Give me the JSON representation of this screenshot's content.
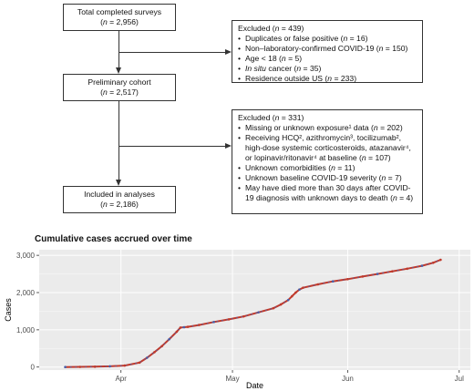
{
  "flow": {
    "total": {
      "label": "Total completed surveys",
      "n": "(n = 2,956)"
    },
    "preliminary": {
      "label": "Preliminary cohort",
      "n": "(n = 2,517)"
    },
    "included": {
      "label": "Included in analyses",
      "n": "(n = 2,186)"
    },
    "excluded1": {
      "header": "Excluded (n = 439)",
      "items": [
        "Duplicates or false positive (n = 16)",
        "Non–laboratory-confirmed COVID-19 (n = 150)",
        "Age < 18 (n = 5)",
        "In situ cancer (n = 35)",
        "Residence outside US (n = 233)"
      ]
    },
    "excluded2": {
      "header": "Excluded (n = 331)",
      "items": [
        "Missing or unknown exposure¹ data (n = 202)",
        "Receiving HCQ², azithromycin³, tocilizumab², high-dose systemic corticosteroids, atazanavir⁴, or lopinavir/ritonavir⁴ at baseline (n = 107)",
        "Unknown comorbidities (n = 11)",
        "Unknown baseline COVID-19 severity (n = 7)",
        "May have died more than 30 days after COVID-19 diagnosis with unknown days to death (n = 4)"
      ]
    }
  },
  "chart_title": "Cumulative cases accrued over time",
  "chart_data": {
    "type": "line",
    "title": "Cumulative cases accrued over time",
    "xlabel": "Date",
    "ylabel": "Cases",
    "x_tick_labels": [
      "Apr",
      "May",
      "Jun",
      "Jul"
    ],
    "y_tick_labels": [
      "0",
      "1,000",
      "2,000",
      "3,000"
    ],
    "y_ticks": [
      0,
      1000,
      2000,
      3000
    ],
    "ylim": [
      -80,
      3150
    ],
    "xlim": [
      "2020-03-10",
      "2020-07-04"
    ],
    "x_ticks": [
      "2020-04-01",
      "2020-05-01",
      "2020-06-01",
      "2020-07-01"
    ],
    "grid": true,
    "series": [
      {
        "colors": [
          "#c0392b",
          "#4a5fa8"
        ],
        "x": [
          "2020-03-17",
          "2020-03-21",
          "2020-03-25",
          "2020-03-29",
          "2020-04-02",
          "2020-04-06",
          "2020-04-08",
          "2020-04-10",
          "2020-04-12",
          "2020-04-14",
          "2020-04-16",
          "2020-04-17",
          "2020-04-18",
          "2020-04-19",
          "2020-04-22",
          "2020-04-26",
          "2020-04-30",
          "2020-05-04",
          "2020-05-08",
          "2020-05-12",
          "2020-05-14",
          "2020-05-16",
          "2020-05-17",
          "2020-05-18",
          "2020-05-19",
          "2020-05-20",
          "2020-05-24",
          "2020-05-28",
          "2020-06-01",
          "2020-06-05",
          "2020-06-09",
          "2020-06-13",
          "2020-06-17",
          "2020-06-21",
          "2020-06-24",
          "2020-06-26"
        ],
        "y": [
          0,
          5,
          10,
          20,
          40,
          120,
          250,
          400,
          560,
          750,
          950,
          1060,
          1070,
          1080,
          1130,
          1210,
          1280,
          1360,
          1470,
          1580,
          1680,
          1800,
          1900,
          2000,
          2080,
          2130,
          2220,
          2300,
          2360,
          2430,
          2500,
          2570,
          2640,
          2720,
          2800,
          2880
        ]
      }
    ]
  }
}
